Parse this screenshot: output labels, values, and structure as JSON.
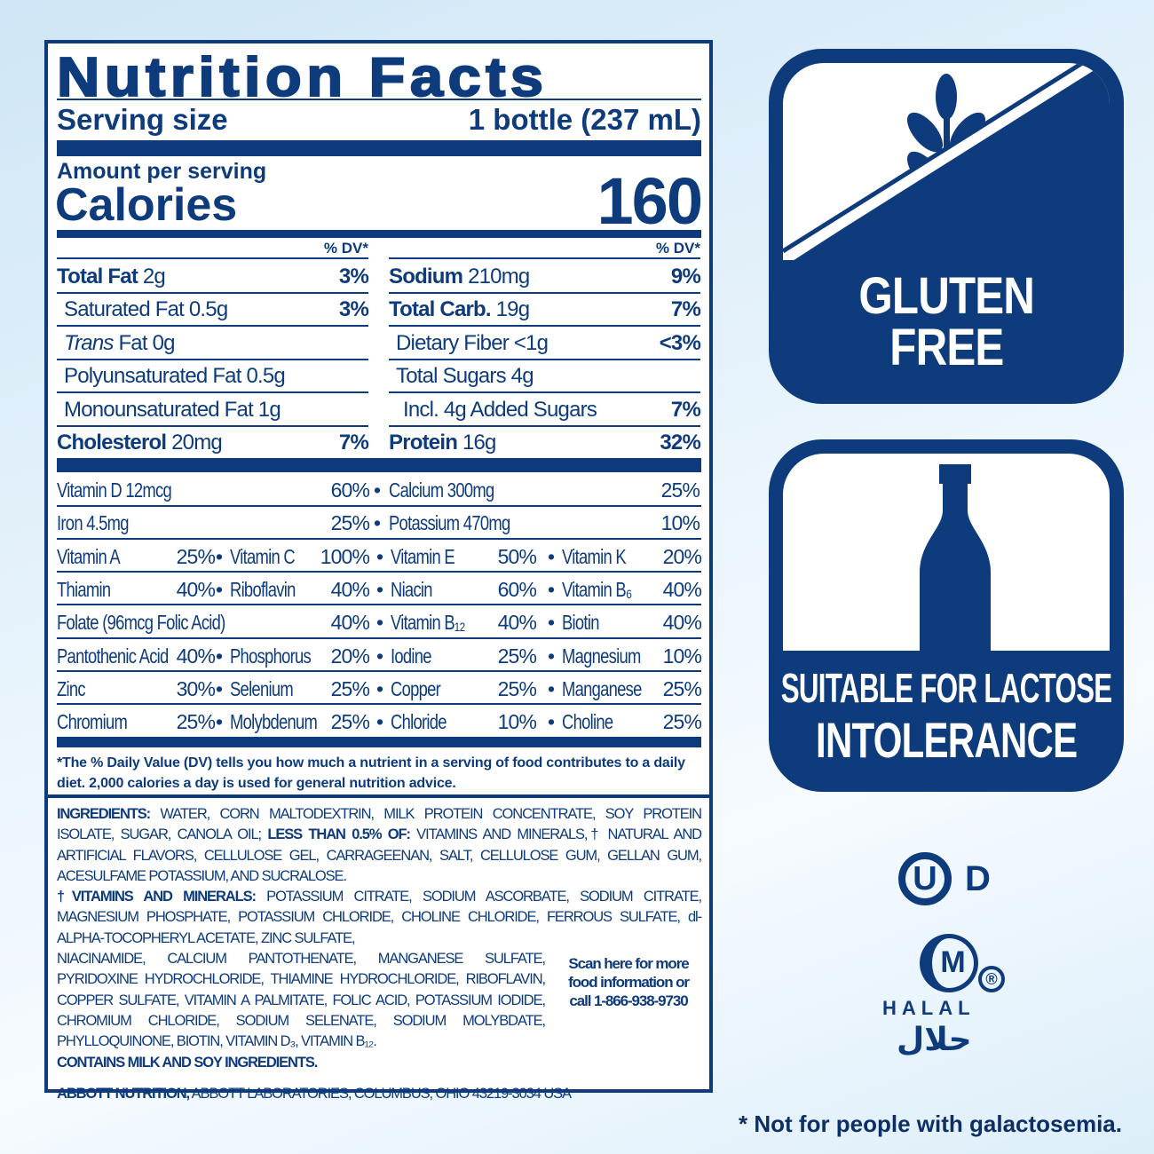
{
  "label": {
    "title": "Nutrition Facts",
    "serving_size_label": "Serving size",
    "serving_size_value": "1 bottle (237 mL)",
    "amount_per_serving": "Amount per serving",
    "calories_label": "Calories",
    "calories_value": "160",
    "dv_header": "% DV*",
    "left_rows": [
      {
        "name": "Total Fat",
        "amount": " 2g",
        "dv": "3%",
        "bold": true
      },
      {
        "name": "Saturated Fat 0.5g",
        "amount": "",
        "dv": "3%",
        "indent": 1
      },
      {
        "name": "Trans",
        "amount": " Fat 0g",
        "dv": "",
        "indent": 1,
        "italic": true
      },
      {
        "name": "Polyunsaturated Fat 0.5g",
        "amount": "",
        "dv": "",
        "indent": 1
      },
      {
        "name": "Monounsaturated Fat 1g",
        "amount": "",
        "dv": "",
        "indent": 1
      },
      {
        "name": "Cholesterol",
        "amount": " 20mg",
        "dv": "7%",
        "bold": true
      }
    ],
    "right_rows": [
      {
        "name": "Sodium",
        "amount": " 210mg",
        "dv": "9%",
        "bold": true
      },
      {
        "name": "Total Carb.",
        "amount": " 19g",
        "dv": "7%",
        "bold": true
      },
      {
        "name": "Dietary Fiber <1g",
        "amount": "",
        "dv": "<3%",
        "indent": 1
      },
      {
        "name": "Total Sugars 4g",
        "amount": "",
        "dv": "",
        "indent": 1
      },
      {
        "name": "Incl. 4g Added Sugars",
        "amount": "",
        "dv": "7%",
        "indent": 2
      },
      {
        "name": "Protein",
        "amount": " 16g",
        "dv": "32%",
        "bold": true
      }
    ],
    "vitamin_rows_two": [
      [
        [
          "Vitamin D 12mcg",
          "60%"
        ],
        [
          "Calcium 300mg",
          "25%"
        ]
      ],
      [
        [
          "Iron 4.5mg",
          "25%"
        ],
        [
          "Potassium 470mg",
          "10%"
        ]
      ]
    ],
    "vitamin_rows_four": [
      [
        [
          "Vitamin A",
          "25%"
        ],
        [
          "Vitamin C",
          "100%"
        ],
        [
          "Vitamin E",
          "50%"
        ],
        [
          "Vitamin K",
          "20%"
        ]
      ],
      [
        [
          "Thiamin",
          "40%"
        ],
        [
          "Riboflavin",
          "40%"
        ],
        [
          "Niacin",
          "60%"
        ],
        [
          "Vitamin B₆",
          "40%"
        ]
      ],
      [
        [
          "Folate (96mcg Folic Acid)",
          "40%"
        ],
        [
          "",
          ""
        ],
        [
          "Vitamin B₁₂",
          "40%"
        ],
        [
          "Biotin",
          "40%"
        ]
      ],
      [
        [
          "Pantothenic Acid",
          "40%"
        ],
        [
          "Phosphorus",
          "20%"
        ],
        [
          "Iodine",
          "25%"
        ],
        [
          "Magnesium",
          "10%"
        ]
      ],
      [
        [
          "Zinc",
          "30%"
        ],
        [
          "Selenium",
          "25%"
        ],
        [
          "Copper",
          "25%"
        ],
        [
          "Manganese",
          "25%"
        ]
      ],
      [
        [
          "Chromium",
          "25%"
        ],
        [
          "Molybdenum",
          "25%"
        ],
        [
          "Chloride",
          "10%"
        ],
        [
          "Choline",
          "25%"
        ]
      ]
    ],
    "footnote": "*The % Daily Value (DV) tells you how much a nutrient in a serving of food contributes to a daily diet. 2,000 calories a day is used for general nutrition advice.",
    "ingredients_label": "INGREDIENTS:",
    "ingredients": " WATER, CORN MALTODEXTRIN, MILK PROTEIN CONCENTRATE, SOY PROTEIN ISOLATE, SUGAR, CANOLA OIL;",
    "less_than_label": "LESS THAN 0.5% OF:",
    "less_than": " VITAMINS AND MINERALS,† NATURAL AND ARTIFICIAL FLAVORS, CELLULOSE GEL, CARRAGEENAN, SALT, CELLULOSE GUM, GELLAN GUM, ACESULFAME POTASSIUM, AND SUCRALOSE.",
    "vitamins_label": "†VITAMINS AND MINERALS:",
    "vitamins_a": " POTASSIUM CITRATE, SODIUM ASCORBATE, SODIUM CITRATE, MAGNESIUM PHOSPHATE, POTASSIUM CHLORIDE, CHOLINE CHLORIDE, FERROUS SULFATE, dl-ALPHA-TOCOPHERYL ACETATE, ZINC SULFATE,",
    "vitamins_b": "NIACINAMIDE, CALCIUM PANTOTHENATE, MANGANESE SULFATE, PYRIDOXINE HYDROCHLORIDE, THIAMINE HYDROCHLORIDE, RIBOFLAVIN, COPPER SULFATE, VITAMIN A PALMITATE, FOLIC ACID, POTASSIUM IODIDE, CHROMIUM CHLORIDE, SODIUM SELENATE, SODIUM MOLYBDATE, PHYLLOQUINONE, BIOTIN, VITAMIN D₃, VITAMIN B₁₂.",
    "scan_text": "Scan here for more food information or call 1-866-938-9730",
    "contains": "CONTAINS MILK AND SOY INGREDIENTS.",
    "manufacturer_label": "ABBOTT NUTRITION,",
    "manufacturer": " ABBOTT LABORATORIES, COLUMBUS, OHIO 43219-3034 USA"
  },
  "badges": {
    "gluten_line1": "GLUTEN",
    "gluten_line2": "FREE",
    "lactose_line1": "SUITABLE FOR LACTOSE",
    "lactose_line2": "INTOLERANCE",
    "gluten_icon": "wheat-crossed-icon",
    "lactose_icon": "bottle-icon"
  },
  "certifications": {
    "kosher": "U D",
    "kosher_letter": "U",
    "kosher_suffix": "D",
    "halal_letter": "M",
    "halal_en": "HALAL",
    "halal_ar": "حلال"
  },
  "disclaimer": "* Not for people with galactosemia.",
  "colors": {
    "navy": "#0d3b7c",
    "background": "#e3f1fb"
  }
}
